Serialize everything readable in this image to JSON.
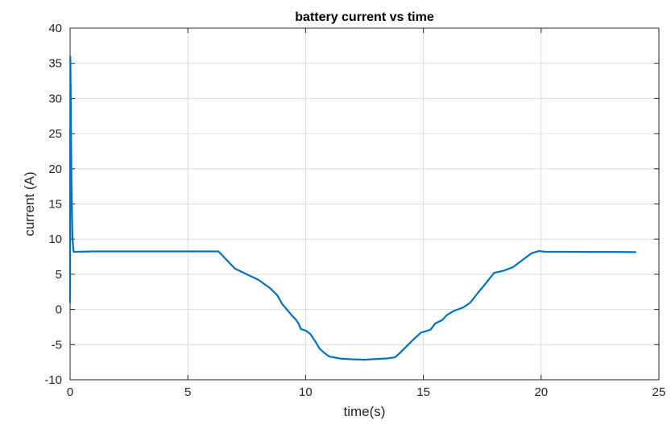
{
  "chart_data": {
    "type": "line",
    "title": "battery current vs time",
    "xlabel": "time(s)",
    "ylabel": "current (A)",
    "xlim": [
      0,
      25
    ],
    "ylim": [
      -10,
      40
    ],
    "xticks": [
      0,
      5,
      10,
      15,
      20,
      25
    ],
    "yticks": [
      -10,
      -5,
      0,
      5,
      10,
      15,
      20,
      25,
      30,
      35,
      40
    ],
    "grid": true,
    "line_color": "#0072BD",
    "series": [
      {
        "x": [
          0.0,
          0.01,
          0.03,
          0.06,
          0.1,
          0.15,
          0.3,
          1.0,
          2.0,
          3.0,
          4.0,
          5.0,
          6.0,
          6.3,
          6.6,
          7.0,
          7.5,
          8.0,
          8.5,
          8.8,
          9.0,
          9.2,
          9.4,
          9.6,
          9.7,
          9.8,
          10.0,
          10.2,
          10.4,
          10.6,
          10.8,
          11.0,
          11.5,
          12.0,
          12.5,
          13.0,
          13.5,
          13.8,
          14.0,
          14.3,
          14.6,
          14.9,
          15.2,
          15.3,
          15.5,
          15.8,
          16.0,
          16.3,
          16.7,
          17.0,
          17.3,
          17.6,
          18.0,
          18.4,
          18.8,
          19.2,
          19.6,
          19.9,
          20.2,
          21.0,
          22.0,
          23.0,
          24.0
        ],
        "y": [
          1.0,
          36.0,
          30.0,
          18.0,
          10.0,
          8.2,
          8.2,
          8.25,
          8.25,
          8.25,
          8.25,
          8.25,
          8.25,
          8.25,
          7.2,
          5.8,
          5.0,
          4.2,
          3.0,
          2.0,
          0.8,
          0.0,
          -0.8,
          -1.5,
          -2.0,
          -2.8,
          -3.0,
          -3.5,
          -4.5,
          -5.6,
          -6.2,
          -6.7,
          -7.0,
          -7.1,
          -7.15,
          -7.05,
          -6.95,
          -6.8,
          -6.2,
          -5.2,
          -4.2,
          -3.3,
          -3.0,
          -2.9,
          -2.0,
          -1.5,
          -0.8,
          -0.2,
          0.3,
          1.0,
          2.3,
          3.5,
          5.2,
          5.5,
          6.0,
          7.0,
          8.0,
          8.3,
          8.2,
          8.2,
          8.18,
          8.18,
          8.15
        ]
      }
    ]
  }
}
